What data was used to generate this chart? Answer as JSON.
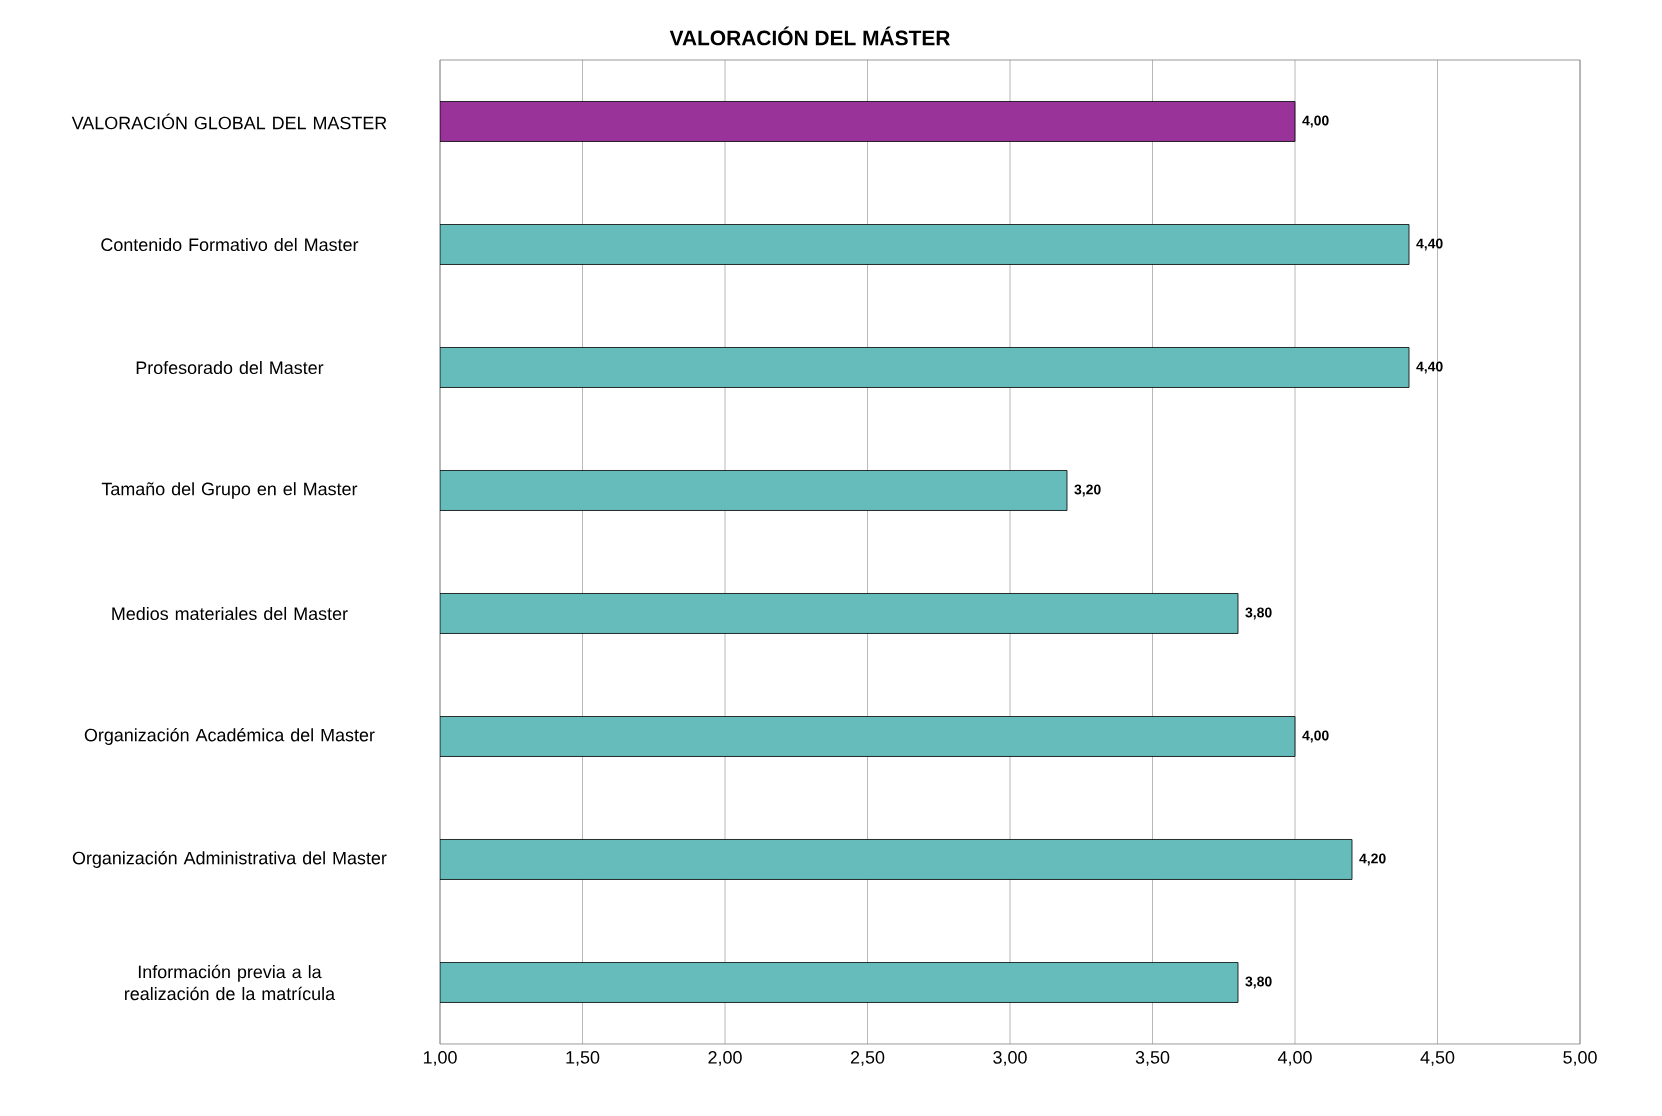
{
  "chart_data": {
    "type": "bar",
    "orientation": "horizontal",
    "title": "VALORACIÓN DEL MÁSTER",
    "categories": [
      "VALORACIÓN GLOBAL DEL MASTER",
      "Contenido Formativo del Master",
      "Profesorado del Master",
      "Tamaño del Grupo en el Master",
      "Medios materiales del Master",
      "Organización Académica del Master",
      "Organización Administrativa del Master",
      "Información previa a la realización de la matrícula"
    ],
    "values": [
      4.0,
      4.4,
      4.4,
      3.2,
      3.8,
      4.0,
      4.2,
      3.8
    ],
    "value_labels": [
      "4,00",
      "4,40",
      "4,40",
      "3,20",
      "3,80",
      "4,00",
      "4,20",
      "3,80"
    ],
    "colors": [
      "#993399",
      "#66bbbb",
      "#66bbbb",
      "#66bbbb",
      "#66bbbb",
      "#66bbbb",
      "#66bbbb",
      "#66bbbb"
    ],
    "xlim": [
      1,
      5
    ],
    "xticks": [
      {
        "value": 1,
        "label": "1,00"
      },
      {
        "value": 1.5,
        "label": "1,50"
      },
      {
        "value": 2,
        "label": "2,00"
      },
      {
        "value": 2.5,
        "label": "2,50"
      },
      {
        "value": 3,
        "label": "3,00"
      },
      {
        "value": 3.5,
        "label": "3,50"
      },
      {
        "value": 4,
        "label": "4,00"
      },
      {
        "value": 4.5,
        "label": "4,50"
      },
      {
        "value": 5,
        "label": "5,00"
      }
    ],
    "grid": "x"
  }
}
